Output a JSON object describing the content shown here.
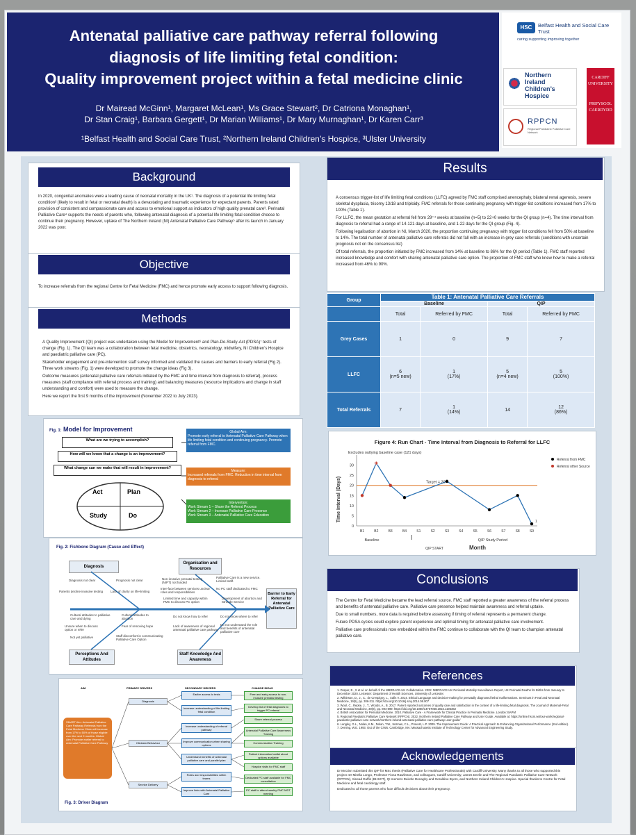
{
  "header": {
    "title_lines": [
      "Antenatal palliative care pathway referral following",
      "diagnosis of life limiting fetal condition:",
      "Quality improvement project within a fetal medicine clinic"
    ],
    "authors_line1": "Dr Mairead McGinn¹, Margaret McLean¹, Ms Grace Stewart², Dr Catriona Monaghan¹,",
    "authors_line2": "Dr Stan Craig¹, Barbara Gergett¹, Dr Marian Williams¹, Dr Mary Murnaghan¹, Dr Karen Carr³",
    "affiliations": "¹Belfast Health and Social Care Trust, ²Northern Ireland Children’s Hospice, ³Ulster University"
  },
  "logos": {
    "hsc": "HSC",
    "belfast": "Belfast Health and Social Care Trust",
    "belfast_tagline": "caring supporting improving together",
    "nich_1": "Northern",
    "nich_2": "Ireland Children’s",
    "nich_3": "Hospice",
    "rppcn": "RPPCN",
    "rppcn_sub": "Regional Paediatric Palliative Care Network",
    "cardiff_1": "CARDIFF",
    "cardiff_2": "UNIVERSITY",
    "cardiff_3": "PRIFYSGOL",
    "cardiff_4": "CAERDYDD"
  },
  "background": {
    "heading": "Background",
    "text": "In 2020, congenital anomalies were a leading cause of neonatal mortality in the UK¹. The diagnosis of a potential life limiting fetal condition² (likely to result in fetal or neonatal death) is a devastating and traumatic experience for expectant parents. Parents rated provision of consistent and compassionate care and access to emotional support as indicators of high quality prenatal care³. Perinatal Palliative Care⁴ supports the needs of parents who, following antenatal diagnosis of a potential life limiting fetal condition choose to continue their pregnancy. However, uptake of The Northern Ireland (NI) Antenatal Palliative Care Pathway⁵ after its launch in January 2022 was poor."
  },
  "objective": {
    "heading": "Objective",
    "text": "To increase referrals from the regional Centre for Fetal Medicine (FMC) and hence promote early access to support following diagnosis."
  },
  "methods": {
    "heading": "Methods",
    "paragraphs": [
      "A Quality Improvement (QI) project was undertaken using the Model for Improvement⁶ and Plan-Do-Study-Act (PDSA)⁷ tests of change (Fig. 1). The QI team was a collaboration between fetal medicine, obstetrics, neonatology, midwifery, NI Children’s Hospice and paediatric palliative care (PC).",
      "Stakeholder engagement and pre-intervention staff survey informed and validated the causes and barriers to early referral (Fig 2). Three work streams (Fig. 1) were developed to promote the change ideas (Fig 3).",
      "Outcome measures (antenatal palliative care referrals initiated by the FMC and time interval from diagnosis to referral), process measures (staff compliance with referral process and training) and balancing measures (resource implications and change in staff understanding and comfort) were used to measure the change.",
      "Here we report the first 9 months of the improvement (November 2022 to July 2023)."
    ]
  },
  "fig1": {
    "label": "Fig. 1:",
    "title": "Model for Improvement",
    "q1": "What are we trying to accomplish?",
    "q2": "How will we know that a change is an improvement?",
    "q3": "What change can we make that will result in improvement?",
    "act": "Act",
    "plan": "Plan",
    "study": "Study",
    "do": "Do",
    "aim_title": "Global Aim:",
    "aim_text": "Promote early referral to Antenatal Palliative Care Pathway when life limiting fetal condition and continuing pregnancy. Promote referral from FMC.",
    "measure_title": "Measure:",
    "measure_text": "Increased referrals from FMC. Reduction in time interval from diagnosis to referral",
    "interv_title": "Intervention:",
    "interv_1": "Work Stream 1 – Share the Referral Process",
    "interv_2": "Work Stream 2 – Increase Palliative Care Presence",
    "interv_3": "Work Stream 3 – Antenatal Palliative Care Education"
  },
  "fig2": {
    "title": "Fig. 2: Fishbone Diagram (Cause and Effect)",
    "diagnosis": "Diagnosis",
    "org": "Organisation and Resources",
    "perceptions": "Perceptions And Attitudes",
    "staff": "Staff Knowledge And Awareness",
    "outcome": "Barrier to Early Referral for Antenatal Palliative Care",
    "causes": [
      "Prognosis not clear",
      "Diagnosis not clear",
      "Parents decline invasive testing",
      "Lack of clarity on life-limiting",
      "Non-invasive prenatal testing (NIPT) not funded",
      "Palliative Care is a new service. Limited staff.",
      "Inter-face between services unclear roles and responsibilities",
      "No PC staff dedicated to FMC",
      "Limited time and capacity within FMC to discuss PC option",
      "Development of abortion and Stroude Service",
      "Cultural attitudes to palliative care and dying",
      "Cultural attitudes to abortion",
      "Unsure when to discuss option or refer",
      "Fear of removing hope",
      "Not yet palliative",
      "Staff discomfort in communicating Palliative Care Option",
      "Do not know how to refer",
      "Do not know where to refer",
      "Lack of awareness of regional antenatal palliative care pathway",
      "Do not understand the role and benefits of antenatal palliative care"
    ]
  },
  "fig3": {
    "title": "Fig. 3: Driver Diagram",
    "aim_h": "AIM",
    "primary_h": "PRIMARY DRIVERS",
    "secondary_h": "SECONDARY DRIVERS",
    "change_h": "CHANGE IDEAS",
    "aim_text": "SMART Aim: Antenatal Palliative Care Pathway Referrals from the Fetal Medicine Clinic will increase from 17% to 50% of those eligible over the next 9 months. Global Aim: Promote earlier referral to Antenatal Palliative Care Pathway",
    "primary": [
      "Diagnosis",
      "Clinician Behaviour",
      "Service Delivery"
    ],
    "secondary": [
      "Earlier access to tests",
      "Increase understanding of life-limiting fetal condition",
      "Increase understanding of referral pathway",
      "Improve communication when sharing options",
      "Understand benefits of antenatal palliative care and parallel plan",
      "Roles and responsibilities within teams",
      "Improve links with Antenatal Palliative Care"
    ],
    "changes": [
      "Free and early access to non-invasive prenatal testing",
      "Develop list of fetal diagnoses to trigger PC referral",
      "Share referral process",
      "Antenatal Palliative Care Awareness Training",
      "Communication Training",
      "Patient information leaflet about options available",
      "Hospice visits for FMC staff",
      "Dedicated PC staff available for FMC consultation",
      "PC staff to attend weekly FMC MDT meeting"
    ]
  },
  "results": {
    "heading": "Results",
    "paragraphs": [
      "A consensus trigger-list of life limiting fetal conditions (LLFC) agreed by FMC staff comprised anencephaly, bilateral renal agenesis, severe skeletal dysplasia, trisomy 13/18 and triploidy. FMC referrals for those continuing pregnancy with trigger-list conditions increased from 17% to 100% (Table 1).",
      "For LLFC, the mean gestation at referral fell from 29⁺⁴ weeks at baseline (n=5) to 22+0 weeks for the QI group (n=4). The time interval from diagnosis to referral had a range of 14-121 days at baseline, and 1-22 days for the QI group (Fig. 4).",
      "Following legalisation of abortion in NI, March 2020, the proportion continuing pregnancy with trigger list conditions fell from 50% at baseline to 14%. The total number of antenatal palliative care referrals did not fall with an increase in grey case referrals (conditions with uncertain prognosis not on the consensus list)",
      "Of total referrals, the proportion initiated by FMC increased from 14% at baseline to 86% for the QI period (Table 1). FMC staff reported increased knowledge and comfort with sharing antenatal palliative care option. The proportion of FMC staff who knew how to make a referral increased from 46% to 90%."
    ]
  },
  "table1": {
    "title": "Table 1: Antenatal Palliative Care Referrals",
    "group_h": "Group",
    "baseline_h": "Baseline",
    "qip_h": "QIP",
    "total_h": "Total",
    "fmc_h": "Referred by FMC",
    "rows": [
      {
        "label": "Grey Cases",
        "b_total": "1",
        "b_total_sub": "",
        "b_fmc": "0",
        "b_fmc_sub": "",
        "q_total": "9",
        "q_total_sub": "",
        "q_fmc": "7",
        "q_fmc_sub": ""
      },
      {
        "label": "LLFC",
        "b_total": "6",
        "b_total_sub": "(n=5 new)",
        "b_fmc": "1",
        "b_fmc_sub": "(17%)",
        "q_total": "5",
        "q_total_sub": "(n=4 new)",
        "q_fmc": "5",
        "q_fmc_sub": "(100%)"
      },
      {
        "label": "Total Referrals",
        "b_total": "7",
        "b_total_sub": "",
        "b_fmc": "1",
        "b_fmc_sub": "(14%)",
        "q_total": "14",
        "q_total_sub": "",
        "q_fmc": "12",
        "q_fmc_sub": "(86%)"
      }
    ]
  },
  "chart_data": {
    "type": "line",
    "title": "Figure 4: Run Chart - Time Interval from Diagnosis to Referral for LLFC",
    "subtitle": "Excludes outlying baseline case (121 days)",
    "xlabel": "Month",
    "ylabel": "Time Interval (Days)",
    "categories": [
      "B1",
      "B2",
      "B3",
      "B4",
      "S1",
      "S2",
      "S3",
      "S4",
      "S5",
      "S6",
      "S7",
      "S8",
      "S9"
    ],
    "series": [
      {
        "name": "Referral from FMC",
        "color": "#2e74b5",
        "values": [
          15,
          31,
          20,
          14,
          null,
          null,
          22,
          null,
          null,
          8,
          null,
          15,
          1
        ]
      }
    ],
    "points": [
      {
        "x": "B1",
        "y": 15,
        "source": "Referral other Source"
      },
      {
        "x": "B2",
        "y": 31,
        "source": "Referral other Source"
      },
      {
        "x": "B3",
        "y": 20,
        "source": "Referral other Source"
      },
      {
        "x": "B4",
        "y": 14,
        "source": "Referral from FMC"
      },
      {
        "x": "S3",
        "y": 22,
        "source": "Referral from FMC"
      },
      {
        "x": "S6",
        "y": 8,
        "source": "Referral from FMC"
      },
      {
        "x": "S8",
        "y": 15,
        "source": "Referral from FMC"
      },
      {
        "x": "S9",
        "y": 1,
        "source": "Referral from FMC"
      }
    ],
    "target": 20,
    "target_label": "Target = 20",
    "legend": [
      "Referral from FMC",
      "Referral other Source"
    ],
    "legend_placement": "right",
    "ylim": [
      0,
      35
    ],
    "yticks": [
      0,
      5,
      10,
      15,
      20,
      25,
      30
    ],
    "group_labels": [
      "Baseline",
      "QIP START",
      "QIP Study Period"
    ],
    "annotations": [
      "31",
      "1"
    ],
    "colors": {
      "fmc": "#000000",
      "other": "#c0392b",
      "line": "#2e74b5",
      "target": "#e07a2a"
    }
  },
  "conclusions": {
    "heading": "Conclusions",
    "paragraphs": [
      "The Centre for Fetal Medicine became the lead referral source. FMC staff reported a greater awareness of the referral process and benefits of antenatal palliative care. Palliative care presence helped maintain awareness and referral uptake.",
      "Due to small numbers, more data is required before assessing if timing of referral represents a permanent change.",
      "Future PDSA cycles could explore parent experience and optimal timing for antenatal palliative care involvement.",
      "Palliative care professionals now embedded within the FMC continue to collaborate with the QI team to champion antenatal palliative care."
    ]
  },
  "references": {
    "heading": "References",
    "items": [
      "1.  Draper, E., S et al. on behalf of the MBRRACE-UK Collaboration. 2022. MBRRACE-UK Perinatal Mortality Surveillance Report, UK Perinatal Deaths for Births from January to December 2020. Leicester: Department of Health Sciences, University of Leicester.",
      "2.  Wilkinson, D., J., C., de Crespigny, L., Xafis V. 2014. Ethical Language and decision-making for prenatally diagnosed lethal malformations. Seminars in Fetal and Neonatal Medicine, 19(5), pp. 306-311. https://doi.org/10.1016/j.siny.2014.08.007",
      "3.  Wool, C., Repke, J., T., Woods, A., B. 2017. Parent reported outcomes of quality care and satisfaction in the context of a life-limiting fetal diagnosis. The Journal of Maternal-Fetal and Neonatal Medicine, 30(8), pp. 894-899. https://doi.org/10.1080/14767058.2016.1195362",
      "4.  British Association for Perinatal Medicine. 2010. Palliative Care - A Framework for Clinical Practice in Perinatal Medicine. London: BAPM",
      "5.  Regional Paediatric Palliative Care Network (RPPCN). 2022. Northern Ireland Palliative Care Pathway and User Guide. Available at: https://online.hscni.net/our-work/regional-paediatric-palliative-care-network/northern-ireland-antenatal-palliative-care-pathway-user-guide/",
      "6.  Langley, G.L., Nolan, K.M., Nolan, T.W., Norman, C.L., Provost, L.P. 2009. The Improvement Guide: A Practical Approach to Enhancing Organizational Performance (2nd edition).",
      "7.  Deming, W.E. 1993. Out of the Crisis. Cambridge, MA: Massachusetts Institute of Technology Center for Advanced Engineering Study."
    ]
  },
  "acknowledgements": {
    "heading": "Acknowledgements",
    "paragraphs": [
      "Dr McGinn submitted this QIP for MSc thesis (Palliative Care for Healthcare Professionals) with Cardiff University. Many thanks to all those who supported this project: Dr Mirella Longo, Professor Fiona Rawlinson, and colleagues, Cardiff University; James Devlin and The Regional Paediatric Palliative Care Network (RPPCN), Sinead Duffin (BHSCT), QI mentors Deirdre Donaghy and Geraldine Byers, and Northern Ireland Children’s Hospice. Special thanks to Centre for Fetal Medicine and fetal cardiology staff.",
      "Dedicated to all those parents who face difficult decisions about their pregnancy."
    ]
  }
}
